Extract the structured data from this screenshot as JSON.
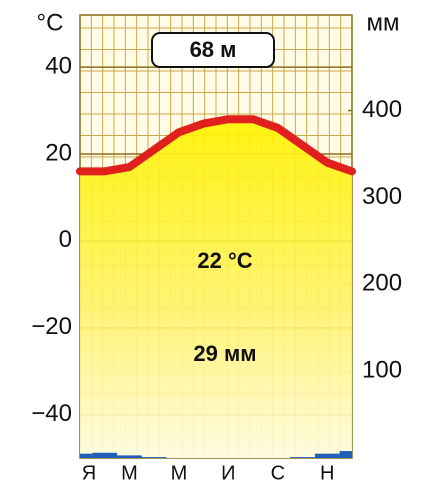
{
  "chart_data": {
    "type": "climate",
    "elevation_label": "68 м",
    "y_label": "°C",
    "y2_label": "мм",
    "annotations": [
      "22 °C",
      "29 мм"
    ],
    "categories": [
      "Я",
      null,
      "М",
      null,
      "М",
      null,
      "И",
      null,
      "С",
      null,
      "Н",
      null
    ],
    "temperature": {
      "color": "#e0201c",
      "values": [
        16,
        16,
        17,
        21,
        25,
        27,
        28,
        28,
        26,
        22,
        18,
        16
      ]
    },
    "precipitation": {
      "color": "#1f5fb8",
      "axis": "y2",
      "values": [
        5,
        6,
        3,
        1,
        0,
        0,
        0,
        0,
        0,
        1,
        5,
        8
      ]
    },
    "ylim": [
      -50,
      52
    ],
    "yticks": [
      {
        "value": -40,
        "label": "−40"
      },
      {
        "value": -20,
        "label": "−20"
      },
      0,
      20,
      40
    ],
    "y2lim": [
      0,
      510
    ],
    "y2ticks": [
      100,
      200,
      300,
      400
    ],
    "grid": true
  }
}
